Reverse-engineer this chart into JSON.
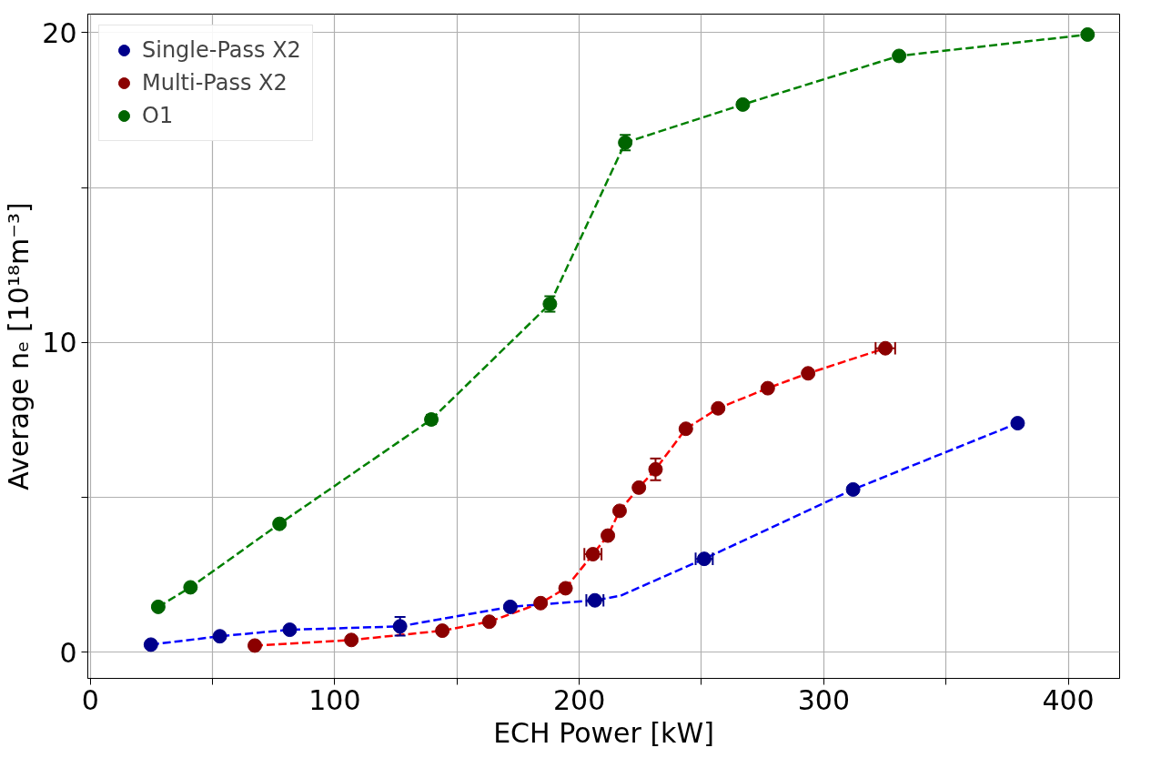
{
  "chart_data": {
    "type": "scatter",
    "xlabel": "ECH Power [kW]",
    "ylabel": "Average nₑ [10¹⁸m⁻³]",
    "xlim": [
      -1,
      421
    ],
    "ylim": [
      -0.85,
      20.6
    ],
    "xticks": [
      0,
      {
        "value": 50,
        "label": null
      },
      100,
      {
        "value": 150,
        "label": null
      },
      200,
      {
        "value": 250,
        "label": null
      },
      300,
      {
        "value": 350,
        "label": null
      },
      400
    ],
    "yticks": [
      0,
      {
        "value": 5,
        "label": null
      },
      10,
      {
        "value": 15,
        "label": null
      },
      20
    ],
    "grid": true,
    "legend": "top left",
    "marker": "circle",
    "series": [
      {
        "type": "line",
        "color": "#0000ff",
        "line_style": "dashed",
        "marker": "none",
        "x": [
          24.8,
          53,
          81.6,
          126.7,
          171.8,
          206.4,
          216.9,
          251.1,
          312,
          379.3
        ],
        "values": [
          0.24,
          0.51,
          0.72,
          0.83,
          1.46,
          1.67,
          1.82,
          3.01,
          5.25,
          7.39
        ]
      },
      {
        "type": "line",
        "color": "#ff0000",
        "line_style": "dashed",
        "marker": "none",
        "x": [
          67.3,
          106.8,
          144,
          163.2,
          184.2,
          194.4,
          205.6,
          211.7,
          216.5,
          224.4,
          231.2,
          243.6,
          256.8,
          277.1,
          293.6,
          325.2
        ],
        "values": [
          0.21,
          0.39,
          0.69,
          0.98,
          1.58,
          2.06,
          3.16,
          3.76,
          4.56,
          5.31,
          5.9,
          7.21,
          7.87,
          8.52,
          9.0,
          9.81
        ]
      },
      {
        "type": "line",
        "color": "#008000",
        "line_style": "dashed",
        "marker": "none",
        "x": [
          27.8,
          41,
          77.4,
          139.5,
          188,
          218.8,
          266.9,
          330.8,
          407.9
        ],
        "values": [
          1.46,
          2.09,
          4.14,
          7.51,
          11.24,
          16.45,
          17.68,
          19.25,
          19.94
        ]
      },
      {
        "name": "Single-Pass X2",
        "color": "#00008b",
        "x": [
          24.8,
          53,
          81.6,
          126.7,
          171.8,
          206.4,
          251.1,
          312,
          379.3
        ],
        "values": [
          0.24,
          0.51,
          0.72,
          0.83,
          1.46,
          1.67,
          3.01,
          5.25,
          7.39
        ],
        "errors": [
          null,
          null,
          null,
          0.3,
          null,
          null,
          null,
          null,
          null
        ],
        "xerrors": [
          null,
          null,
          null,
          null,
          null,
          3.5,
          3.5,
          null,
          null
        ]
      },
      {
        "name": "Multi-Pass X2",
        "color": "#8b0000",
        "x": [
          67.3,
          106.8,
          144,
          163.2,
          184.2,
          194.4,
          205.6,
          211.7,
          216.5,
          224.4,
          231.2,
          243.6,
          256.8,
          277.1,
          293.6,
          325.2
        ],
        "values": [
          0.21,
          0.39,
          0.69,
          0.98,
          1.58,
          2.06,
          3.16,
          3.76,
          4.56,
          5.31,
          5.9,
          7.21,
          7.87,
          8.52,
          9.0,
          9.81
        ],
        "errors": [
          null,
          null,
          null,
          null,
          null,
          null,
          null,
          null,
          null,
          null,
          0.35,
          null,
          null,
          null,
          null,
          null
        ],
        "xerrors": [
          null,
          null,
          null,
          null,
          null,
          null,
          3.5,
          null,
          null,
          null,
          null,
          null,
          null,
          null,
          null,
          4
        ]
      },
      {
        "name": "O1",
        "color": "#006400",
        "x": [
          27.8,
          41,
          77.4,
          139.5,
          188,
          218.8,
          266.9,
          330.8,
          407.9
        ],
        "values": [
          1.46,
          2.09,
          4.14,
          7.51,
          11.24,
          16.45,
          17.68,
          19.25,
          19.94
        ],
        "errors": [
          null,
          null,
          null,
          0.15,
          0.25,
          0.25,
          null,
          null,
          null
        ]
      }
    ]
  }
}
